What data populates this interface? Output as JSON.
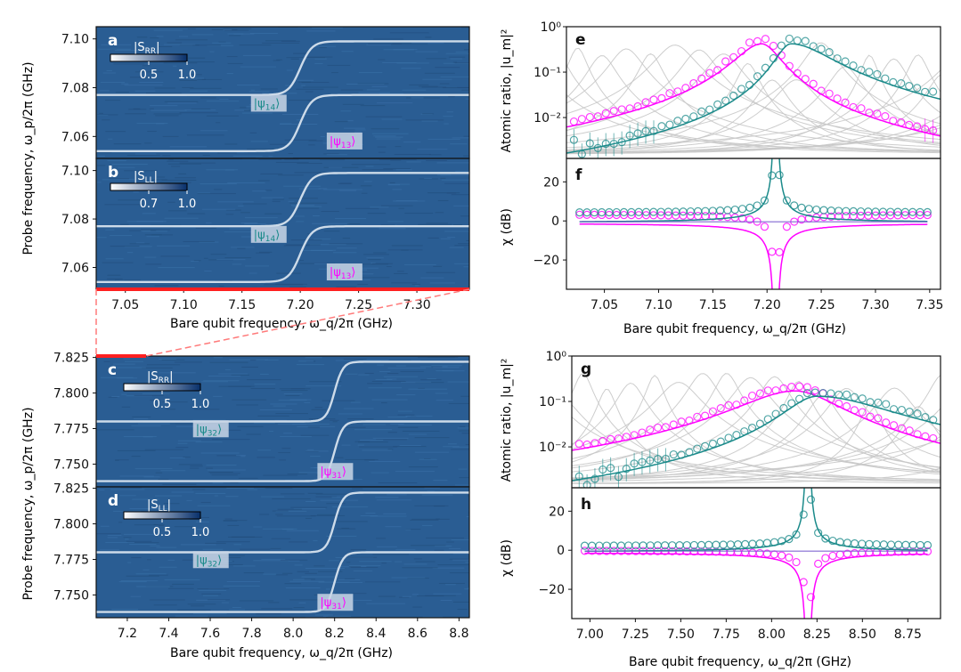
{
  "figure": {
    "left_column": {
      "top_xlabel": "Bare qubit frequency, ω_q/2π (GHz)",
      "top_ylabel": "Probe frequency, ω_p/2π (GHz)",
      "bottom_xlabel": "Bare qubit frequency, ω_q/2π (GHz)",
      "bottom_ylabel": "Probe frequency, ω_p/2π (GHz)"
    },
    "right_column": {
      "top_xlabel": "Bare qubit frequency, ω_q/2π (GHz)",
      "bottom_xlabel": "Bare qubit frequency, ω_q/2π (GHz)",
      "atomic_ylabel": "Atomic ratio, |u_m|²",
      "chi_ylabel": "χ (dB)"
    }
  },
  "colors": {
    "magenta": "#ff00ff",
    "teal": "#1a8a8a",
    "gray": "#c8c8c8",
    "heat_bg": "#2a5d93",
    "heat_line": "#dfe9f3",
    "red": "#ff2020"
  },
  "chart_data": [
    {
      "panel": "a",
      "type": "heatmap",
      "title": "|S_RR|",
      "colorbar": {
        "ticks": [
          "0.5",
          "1.0"
        ]
      },
      "xlim": [
        7.025,
        7.345
      ],
      "ylim": [
        7.051,
        7.105
      ],
      "yticks": [
        "7.06",
        "7.08",
        "7.10"
      ],
      "xticks": [],
      "bare_res": [
        7.054,
        7.077,
        7.099
      ],
      "center": 7.2,
      "g": 0.01,
      "labels": [
        {
          "text": "|ψ14⟩",
          "color": "teal",
          "x": 7.16,
          "y": 7.072
        },
        {
          "text": "|ψ13⟩",
          "color": "magenta",
          "x": 7.225,
          "y": 7.0565
        }
      ]
    },
    {
      "panel": "b",
      "type": "heatmap",
      "title": "|S_LL|",
      "colorbar": {
        "ticks": [
          "0.7",
          "1.0"
        ]
      },
      "xlim": [
        7.025,
        7.345
      ],
      "ylim": [
        7.051,
        7.105
      ],
      "yticks": [
        "7.06",
        "7.08",
        "7.10"
      ],
      "xticks": [
        "7.05",
        "7.10",
        "7.15",
        "7.20",
        "7.25",
        "7.30"
      ],
      "bare_res": [
        7.054,
        7.077,
        7.099
      ],
      "center": 7.2,
      "g": 0.01,
      "labels": [
        {
          "text": "|ψ14⟩",
          "color": "teal",
          "x": 7.16,
          "y": 7.072
        },
        {
          "text": "|ψ13⟩",
          "color": "magenta",
          "x": 7.225,
          "y": 7.0565
        }
      ]
    },
    {
      "panel": "c",
      "type": "heatmap",
      "title": "|S_RR|",
      "colorbar": {
        "ticks": [
          "0.5",
          "1.0"
        ]
      },
      "xlim": [
        7.05,
        8.85
      ],
      "ylim": [
        7.734,
        7.826
      ],
      "yticks": [
        "7.750",
        "7.775",
        "7.800",
        "7.825"
      ],
      "xticks": [],
      "bare_res": [
        7.738,
        7.78,
        7.822
      ],
      "center": 8.2,
      "g": 0.04,
      "labels": [
        {
          "text": "|ψ32⟩",
          "color": "teal",
          "x": 7.53,
          "y": 7.772
        },
        {
          "text": "|ψ31⟩",
          "color": "magenta",
          "x": 8.13,
          "y": 7.742
        }
      ]
    },
    {
      "panel": "d",
      "type": "heatmap",
      "title": "|S_LL|",
      "colorbar": {
        "ticks": [
          "0.5",
          "1.0"
        ]
      },
      "xlim": [
        7.05,
        8.85
      ],
      "ylim": [
        7.734,
        7.826
      ],
      "yticks": [
        "7.750",
        "7.775",
        "7.800",
        "7.825"
      ],
      "xticks": [
        "7.2",
        "7.4",
        "7.6",
        "7.8",
        "8.0",
        "8.2",
        "8.4",
        "8.6",
        "8.8"
      ],
      "bare_res": [
        7.738,
        7.78,
        7.822
      ],
      "center": 8.2,
      "g": 0.04,
      "labels": [
        {
          "text": "|ψ32⟩",
          "color": "teal",
          "x": 7.53,
          "y": 7.772
        },
        {
          "text": "|ψ31⟩",
          "color": "magenta",
          "x": 8.13,
          "y": 7.742
        }
      ]
    },
    {
      "panel": "e",
      "type": "scatter",
      "yscale": "log",
      "xlim": [
        7.015,
        7.36
      ],
      "ylim_log": [
        -2.9,
        0
      ],
      "ytick_labels": [
        "10⁻²",
        "10⁻¹",
        "10⁰"
      ],
      "xticks": [],
      "series": [
        {
          "name": "magenta",
          "peak_x": 7.195,
          "peak": 0.42,
          "width": 0.022,
          "right_width": 0.016,
          "floor": 0.0014
        },
        {
          "name": "teal",
          "peak_x": 7.222,
          "peak": 0.42,
          "width": 0.013,
          "right_width": 0.035,
          "floor": 0.0014
        }
      ]
    },
    {
      "panel": "f",
      "type": "scatter",
      "xlim": [
        7.015,
        7.36
      ],
      "ylim": [
        -35,
        32
      ],
      "yticks": [
        "-20",
        "0",
        "20"
      ],
      "xticks": [
        "7.05",
        "7.10",
        "7.15",
        "7.20",
        "7.25",
        "7.30",
        "7.35"
      ],
      "center": 7.208,
      "series": [
        {
          "name": "magenta",
          "offset": 3.5,
          "sign": -1
        },
        {
          "name": "teal",
          "offset": 4,
          "sign": 1
        }
      ]
    },
    {
      "panel": "g",
      "type": "scatter",
      "yscale": "log",
      "xlim": [
        6.9,
        8.93
      ],
      "ylim_log": [
        -2.9,
        0
      ],
      "ytick_labels": [
        "10⁻²",
        "10⁻¹",
        "10⁰"
      ],
      "xticks": [],
      "series": [
        {
          "name": "magenta",
          "peak_x": 8.13,
          "peak": 0.17,
          "width": 0.28,
          "right_width": 0.22,
          "floor": 0.0012
        },
        {
          "name": "teal",
          "peak_x": 8.25,
          "peak": 0.13,
          "width": 0.16,
          "right_width": 0.38,
          "floor": 0.0012
        }
      ]
    },
    {
      "panel": "h",
      "type": "scatter",
      "xlim": [
        6.9,
        8.93
      ],
      "ylim": [
        -35,
        32
      ],
      "yticks": [
        "-20",
        "0",
        "20"
      ],
      "xticks": [
        "7.00",
        "7.25",
        "7.50",
        "7.75",
        "8.00",
        "8.25",
        "8.50",
        "8.75"
      ],
      "center": 8.2,
      "series": [
        {
          "name": "magenta",
          "offset": 0,
          "sign": -1
        },
        {
          "name": "teal",
          "offset": 2,
          "sign": 1
        }
      ]
    }
  ]
}
